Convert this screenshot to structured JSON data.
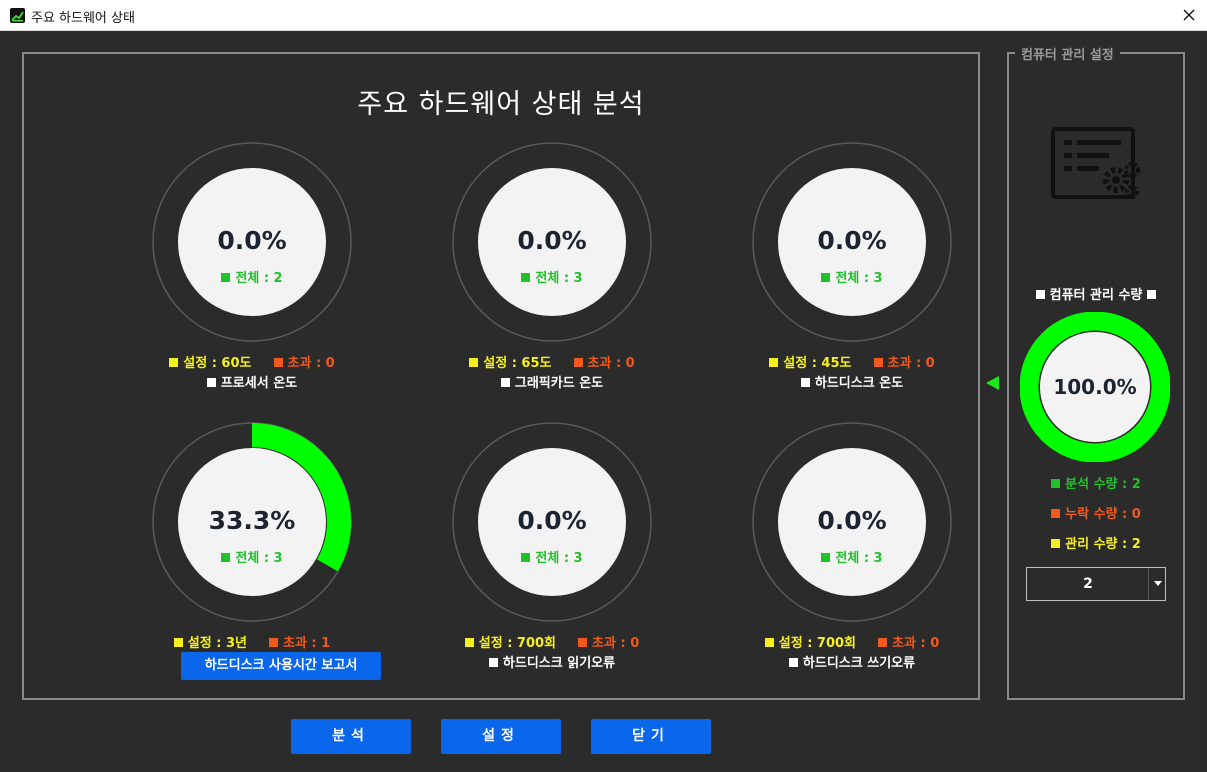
{
  "window": {
    "title": "주요 하드웨어 상태"
  },
  "main": {
    "title": "주요 하드웨어 상태 분석",
    "gauges": [
      {
        "percent": "0.0%",
        "fraction": 0.0,
        "total": "전체 : 2",
        "setting": "설정 : 60도",
        "exceed": "초과 : 0",
        "name": "프로세서 온도"
      },
      {
        "percent": "0.0%",
        "fraction": 0.0,
        "total": "전체 : 3",
        "setting": "설정 : 65도",
        "exceed": "초과 : 0",
        "name": "그래픽카드 온도"
      },
      {
        "percent": "0.0%",
        "fraction": 0.0,
        "total": "전체 : 3",
        "setting": "설정 : 45도",
        "exceed": "초과 : 0",
        "name": "하드디스크 온도"
      },
      {
        "percent": "33.3%",
        "fraction": 0.333,
        "total": "전체 : 3",
        "setting": "설정 : 3년",
        "exceed": "초과 : 1",
        "button": "하드디스크 사용시간 보고서"
      },
      {
        "percent": "0.0%",
        "fraction": 0.0,
        "total": "전체 : 3",
        "setting": "설정 : 700회",
        "exceed": "초과 : 0",
        "name": "하드디스크 읽기오류"
      },
      {
        "percent": "0.0%",
        "fraction": 0.0,
        "total": "전체 : 3",
        "setting": "설정 : 700회",
        "exceed": "초과 : 0",
        "name": "하드디스크 쓰기오류"
      }
    ]
  },
  "side": {
    "legend": "컴퓨터 관리 설정",
    "label": "컴퓨터 관리 수량",
    "percent": "100.0%",
    "fraction": 1.0,
    "analyzed": "분석 수량 : 2",
    "missing": "누락 수량 : 0",
    "managed": "관리 수량 : 2",
    "combo_value": "2"
  },
  "buttons": {
    "analyze": "분석",
    "settings": "설정",
    "close": "닫기"
  },
  "colors": {
    "background": "#2b2b2b",
    "accent_green": "#00ff00",
    "total_green": "#22c02a",
    "setting_yellow": "#f7f01f",
    "exceed_orange": "#f15a1b",
    "button_blue": "#0a66ea",
    "gauge_face": "#f3f3f3"
  }
}
